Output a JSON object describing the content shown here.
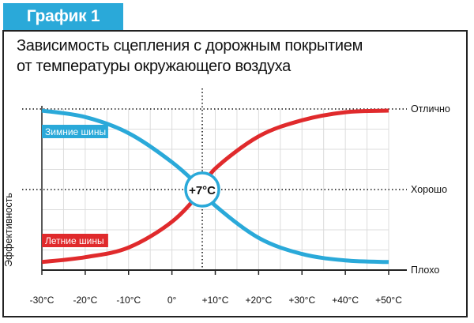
{
  "header": {
    "tab_label": "График 1",
    "title_line1": "Зависимость сцепления с дорожным покрытием",
    "title_line2": "от температуры окружающего воздуха"
  },
  "chart_data": {
    "type": "line",
    "ylabel": "Эффективность",
    "x_categories": [
      "-30°C",
      "-20°C",
      "-10°C",
      "0°",
      "+10°C",
      "+20°C",
      "+30°C",
      "+40°C",
      "+50°C"
    ],
    "xlim": [
      -30,
      50
    ],
    "y_levels": [
      {
        "name": "Плохо",
        "value": 0
      },
      {
        "name": "Хорошо",
        "value": 50
      },
      {
        "name": "Отлично",
        "value": 100
      }
    ],
    "ylim": [
      0,
      100
    ],
    "grid": true,
    "marker": {
      "label": "+7°C",
      "x": 7,
      "y": 50
    },
    "series": [
      {
        "name": "Зимние шины",
        "color": "#2aa9d9",
        "x": [
          -30,
          -20,
          -10,
          0,
          7,
          10,
          20,
          30,
          40,
          50
        ],
        "y": [
          99,
          95,
          85,
          67,
          50,
          40,
          20,
          10,
          6,
          5
        ]
      },
      {
        "name": "Летние шины",
        "color": "#e02a2c",
        "x": [
          -30,
          -20,
          -10,
          0,
          7,
          10,
          20,
          30,
          40,
          50
        ],
        "y": [
          5,
          8,
          14,
          30,
          50,
          63,
          83,
          93,
          98,
          99
        ]
      }
    ]
  }
}
